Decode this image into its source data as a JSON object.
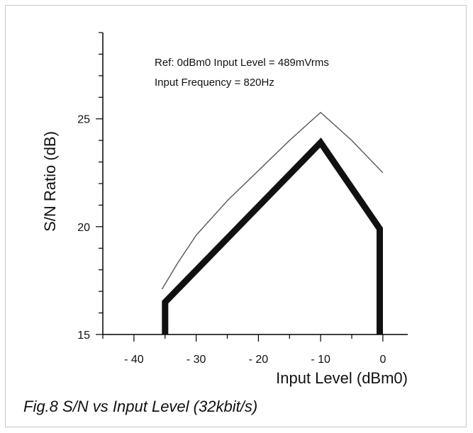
{
  "caption": "Fig.8 S/N vs Input Level (32kbit/s)",
  "chart_data": {
    "type": "line",
    "xlabel": "Input Level (dBm0)",
    "ylabel": "S/N Ratio (dB)",
    "xlim": [
      -45,
      4
    ],
    "ylim": [
      15,
      29
    ],
    "x_ticks": [
      -40,
      -30,
      -20,
      -10,
      0
    ],
    "x_tick_labels": [
      "- 40",
      "- 30",
      "- 20",
      "- 10",
      "0"
    ],
    "y_ticks": [
      15,
      20,
      25
    ],
    "y_tick_labels": [
      "15",
      "20",
      "25"
    ],
    "y_minor_step": 1,
    "x_minor_step": 5,
    "annotations": [
      "Ref: 0dBm0 Input Level = 489mVrms",
      "Input Frequency = 820Hz"
    ],
    "series": [
      {
        "style": "thin",
        "color": "#555555",
        "points": [
          [
            -35.5,
            17.1
          ],
          [
            -33,
            18.3
          ],
          [
            -30,
            19.6
          ],
          [
            -25,
            21.2
          ],
          [
            -20,
            22.6
          ],
          [
            -15,
            24.0
          ],
          [
            -10,
            25.3
          ],
          [
            -5,
            24.0
          ],
          [
            0,
            22.5
          ]
        ]
      },
      {
        "style": "thick",
        "color": "#111111",
        "points": [
          [
            -35,
            15
          ],
          [
            -35,
            16.5
          ],
          [
            -10,
            23.9
          ],
          [
            -0.5,
            19.9
          ],
          [
            -0.5,
            15
          ]
        ]
      }
    ]
  }
}
